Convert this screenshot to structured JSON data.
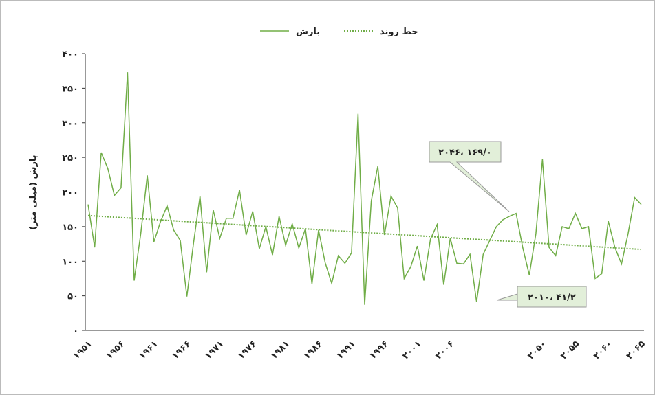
{
  "chart_data": {
    "type": "line",
    "y_label": "بارش (میلی متر)",
    "categories": [
      "۱۹۵۱",
      null,
      null,
      null,
      null,
      "۱۹۵۶",
      null,
      null,
      null,
      null,
      "۱۹۶۱",
      null,
      null,
      null,
      null,
      "۱۹۶۶",
      null,
      null,
      null,
      null,
      "۱۹۷۱",
      null,
      null,
      null,
      null,
      "۱۹۷۶",
      null,
      null,
      null,
      null,
      "۱۹۸۱",
      null,
      null,
      null,
      null,
      "۱۹۸۶",
      null,
      null,
      null,
      null,
      "۱۹۹۱",
      null,
      null,
      null,
      null,
      "۱۹۹۶",
      null,
      null,
      null,
      null,
      "۲۰۰۱",
      null,
      null,
      null,
      null,
      "۲۰۰۶",
      null,
      null,
      null,
      null,
      null,
      null,
      null,
      null,
      null,
      null,
      null,
      null,
      null,
      "۲۰۵۰",
      null,
      null,
      null,
      null,
      "۲۰۵۵",
      null,
      null,
      null,
      null,
      "۲۰۶۰",
      null,
      null,
      null,
      null,
      "۲۰۶۵"
    ],
    "series": [
      {
        "name": "بارش",
        "color": "#70ad47",
        "values": [
          182,
          120,
          257,
          234,
          195,
          206,
          373,
          72,
          140,
          224,
          128,
          157,
          180,
          145,
          130,
          49,
          125,
          194,
          84,
          174,
          133,
          162,
          162,
          203,
          138,
          172,
          118,
          150,
          109,
          165,
          123,
          154,
          119,
          147,
          67,
          145,
          98,
          68,
          108,
          97,
          112,
          313,
          37,
          187,
          237,
          138,
          194,
          177,
          75,
          92,
          122,
          72,
          132,
          153,
          66,
          133,
          97,
          96,
          110,
          41.2,
          110,
          130,
          150,
          160,
          165,
          169,
          120,
          80,
          140,
          247,
          120,
          108,
          150,
          147,
          169,
          147,
          150,
          75,
          82,
          158,
          120,
          96,
          140,
          192,
          182
        ]
      }
    ],
    "trend": {
      "name": "خط روند",
      "color": "#70ad47",
      "values": [
        166,
        117
      ]
    },
    "annotations": [
      "۲۰۴۶، ۱۶۹/۰",
      "۲۰۱۰، ۴۱/۲"
    ],
    "ylim": [
      0,
      400
    ],
    "yticks": [
      {
        "value": 0,
        "label": "۰"
      },
      {
        "value": 50,
        "label": "۵۰"
      },
      {
        "value": 100,
        "label": "۱۰۰"
      },
      {
        "value": 150,
        "label": "۱۵۰"
      },
      {
        "value": 200,
        "label": "۲۰۰"
      },
      {
        "value": 250,
        "label": "۲۵۰"
      },
      {
        "value": 300,
        "label": "۳۰۰"
      },
      {
        "value": 350,
        "label": "۳۵۰"
      },
      {
        "value": 400,
        "label": "۴۰۰"
      }
    ],
    "legend": "top"
  }
}
